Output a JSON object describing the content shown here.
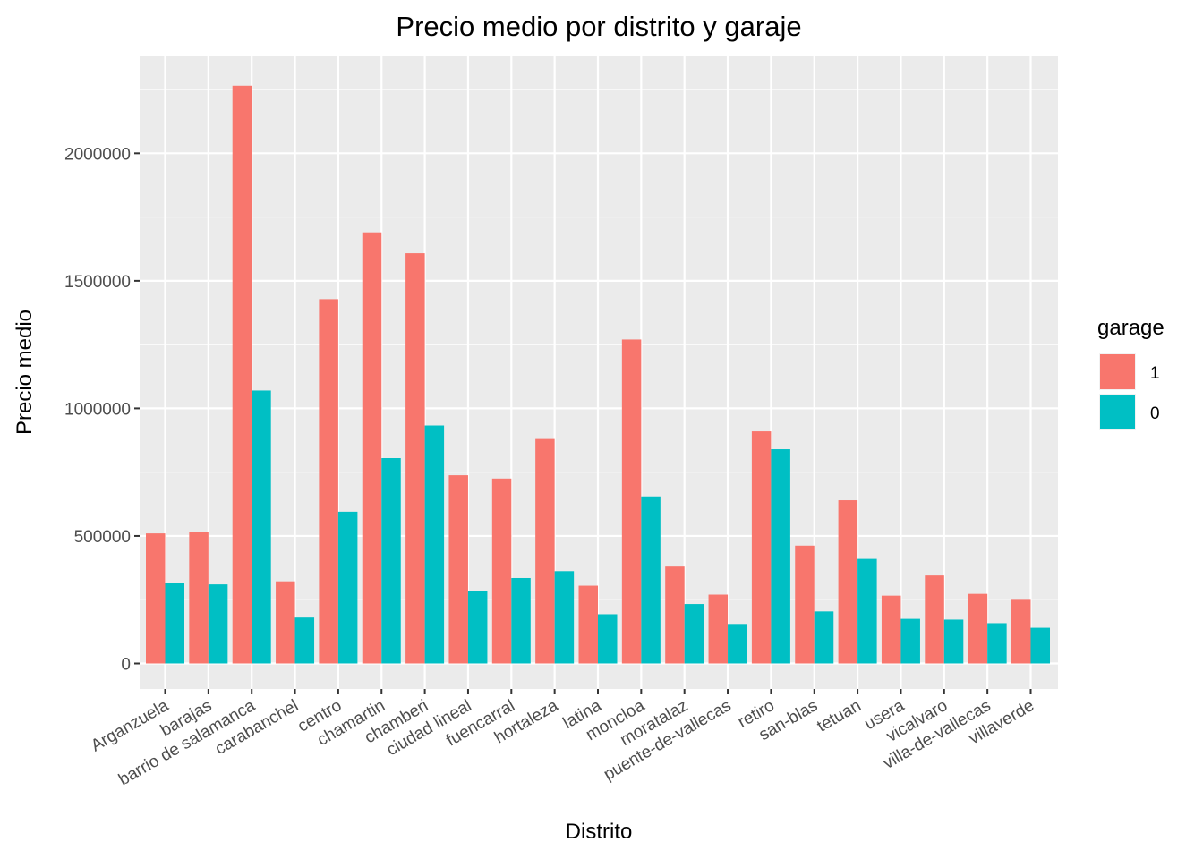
{
  "chart_data": {
    "type": "bar",
    "title": "Precio medio por distrito y garaje",
    "xlabel": "Distrito",
    "ylabel": "Precio medio",
    "ylim": [
      -100000,
      2380000
    ],
    "yticks": [
      0,
      500000,
      1000000,
      1500000,
      2000000
    ],
    "ytick_labels": [
      "0",
      "500000",
      "1000000",
      "1500000",
      "2000000"
    ],
    "grid": true,
    "legend_position": "right",
    "legend_title": "garage",
    "categories": [
      "Arganzuela",
      "barajas",
      "barrio de salamanca",
      "carabanchel",
      "centro",
      "chamartin",
      "chamberi",
      "ciudad lineal",
      "fuencarral",
      "hortaleza",
      "latina",
      "moncloa",
      "moratalaz",
      "puente-de-vallecas",
      "retiro",
      "san-blas",
      "tetuan",
      "usera",
      "vicalvaro",
      "villa-de-vallecas",
      "villaverde"
    ],
    "series": [
      {
        "name": "1",
        "color": "#F8766D",
        "values": [
          510000,
          517000,
          2265000,
          322000,
          1428000,
          1690000,
          1608000,
          738000,
          725000,
          880000,
          305000,
          1270000,
          380000,
          270000,
          910000,
          462000,
          640000,
          266000,
          345000,
          273000,
          253000
        ]
      },
      {
        "name": "0",
        "color": "#00BFC4",
        "values": [
          317000,
          310000,
          1070000,
          180000,
          595000,
          805000,
          933000,
          285000,
          335000,
          362000,
          193000,
          655000,
          233000,
          155000,
          840000,
          204000,
          410000,
          175000,
          172000,
          158000,
          140000
        ]
      }
    ]
  }
}
